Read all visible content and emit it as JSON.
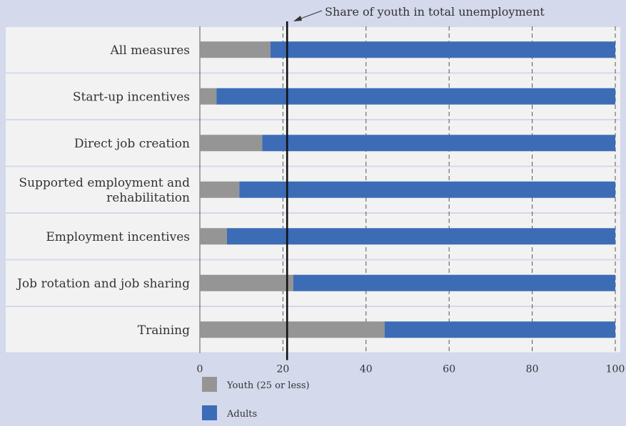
{
  "chart_data": {
    "type": "bar",
    "orientation": "horizontal",
    "stacked": true,
    "categories": [
      "All measures",
      "Start-up incentives",
      "Direct job creation",
      "Supported employment and rehabilitation",
      "Employment incentives",
      "Job rotation and job sharing",
      "Training"
    ],
    "category_lines": [
      [
        "All measures"
      ],
      [
        "Start-up incentives"
      ],
      [
        "Direct job creation"
      ],
      [
        "Supported employment and",
        "rehabilitation"
      ],
      [
        "Employment incentives"
      ],
      [
        "Job rotation and job sharing"
      ],
      [
        "Training"
      ]
    ],
    "series": [
      {
        "name": "Youth (25 or less)",
        "color": "#959595",
        "values": [
          17,
          4,
          15,
          9.5,
          6.5,
          22.5,
          44.5
        ]
      },
      {
        "name": "Adults",
        "color": "#3d6cb6",
        "values": [
          83,
          96,
          85,
          90.5,
          93.5,
          77.5,
          55.5
        ]
      }
    ],
    "xlim": [
      0,
      100
    ],
    "ticks": [
      0,
      20,
      40,
      60,
      80,
      100
    ],
    "tick_labels": [
      "0",
      "20",
      "40",
      "60",
      "80",
      "100"
    ],
    "gridlines": "dashed-vertical",
    "reference_line": {
      "value": 21,
      "label": "Share of youth in total unemployment"
    },
    "legend_position": "bottom"
  }
}
